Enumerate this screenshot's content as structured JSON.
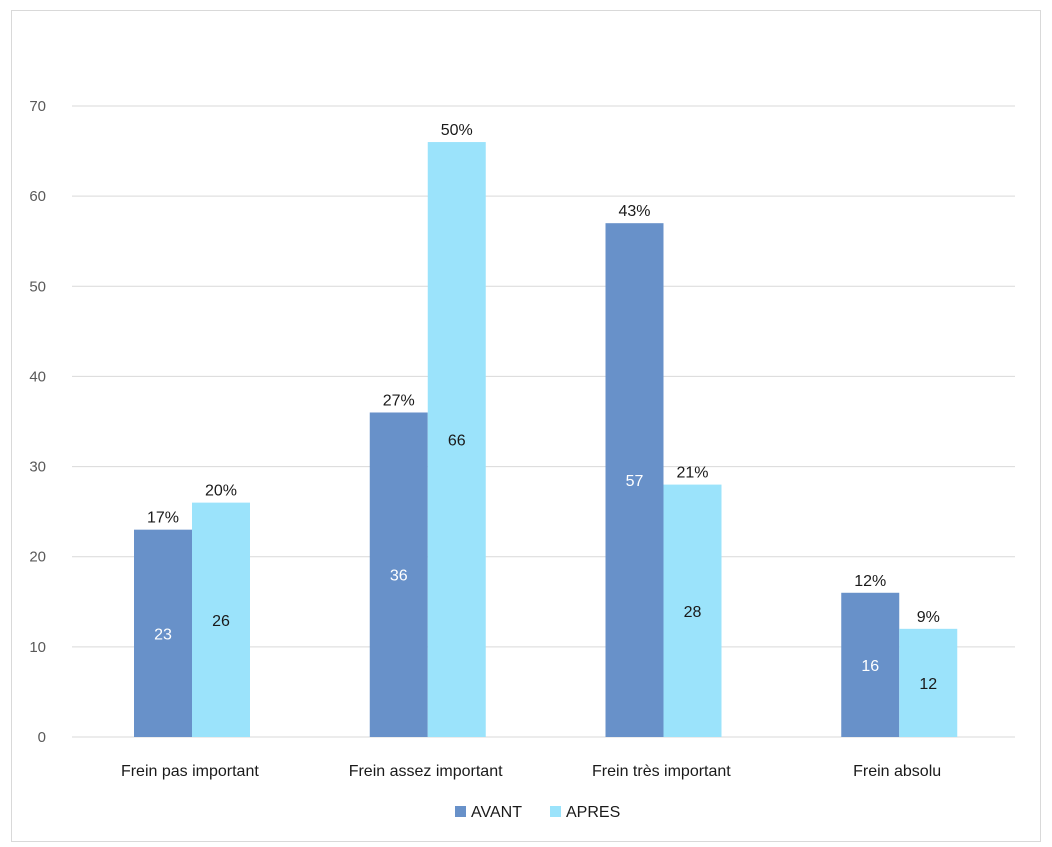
{
  "chart_data": {
    "type": "bar",
    "categories": [
      "Frein pas important",
      "Frein assez important",
      "Frein très important",
      "Frein absolu"
    ],
    "series": [
      {
        "name": "AVANT",
        "color": "#6891c9",
        "value_label_color": "#ffffff",
        "values": [
          23,
          36,
          57,
          16
        ],
        "percent_labels": [
          "17%",
          "27%",
          "43%",
          "12%"
        ]
      },
      {
        "name": "APRES",
        "color": "#9be3fb",
        "value_label_color": "#1a1a1a",
        "values": [
          26,
          66,
          28,
          12
        ],
        "percent_labels": [
          "20%",
          "50%",
          "21%",
          "9%"
        ]
      }
    ],
    "y_ticks": [
      "0",
      "10",
      "20",
      "30",
      "40",
      "50",
      "60",
      "70"
    ],
    "ylim": [
      0,
      70
    ],
    "grid": true,
    "legend_position": "bottom",
    "gridline_color": "#d9d9d9"
  }
}
